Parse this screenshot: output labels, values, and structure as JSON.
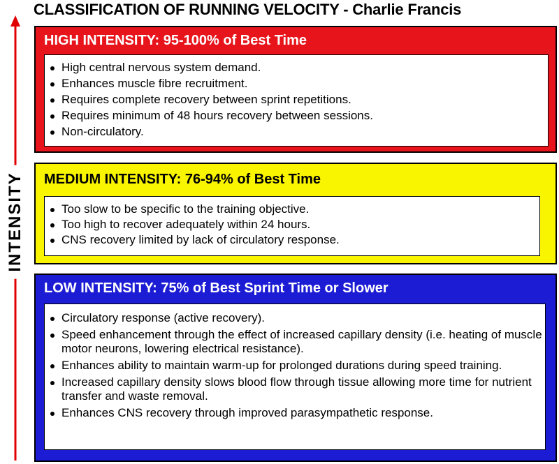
{
  "title": "CLASSIFICATION OF RUNNING VELOCITY - Charlie Francis",
  "axis_label": "INTENSITY",
  "colors": {
    "high": "#e8141b",
    "medium": "#f9f400",
    "low": "#1c1cd4"
  },
  "sections": [
    {
      "heading": "HIGH INTENSITY:  95-100% of Best Time",
      "items": [
        "High central nervous system demand.",
        "Enhances muscle fibre recruitment.",
        "Requires complete recovery between sprint repetitions.",
        "Requires minimum of 48 hours recovery between sessions.",
        "Non-circulatory."
      ]
    },
    {
      "heading": "MEDIUM  INTENSITY:  76-94% of Best Time",
      "items": [
        "Too slow to be specific to the training objective.",
        "Too high to recover adequately within 24 hours.",
        "CNS recovery limited by lack of circulatory response."
      ]
    },
    {
      "heading": "LOW INTENSITY:  75% of Best Sprint Time or Slower",
      "items": [
        "Circulatory response (active recovery).",
        "Speed enhancement through the effect of increased capillary density (i.e. heating of muscle motor neurons, lowering electrical resistance).",
        "Enhances ability to maintain warm-up for prolonged durations during speed training.",
        "Increased capillary density slows blood flow through tissue allowing more time for nutrient transfer and waste removal.",
        "Enhances CNS recovery through improved parasympathetic response."
      ]
    }
  ]
}
